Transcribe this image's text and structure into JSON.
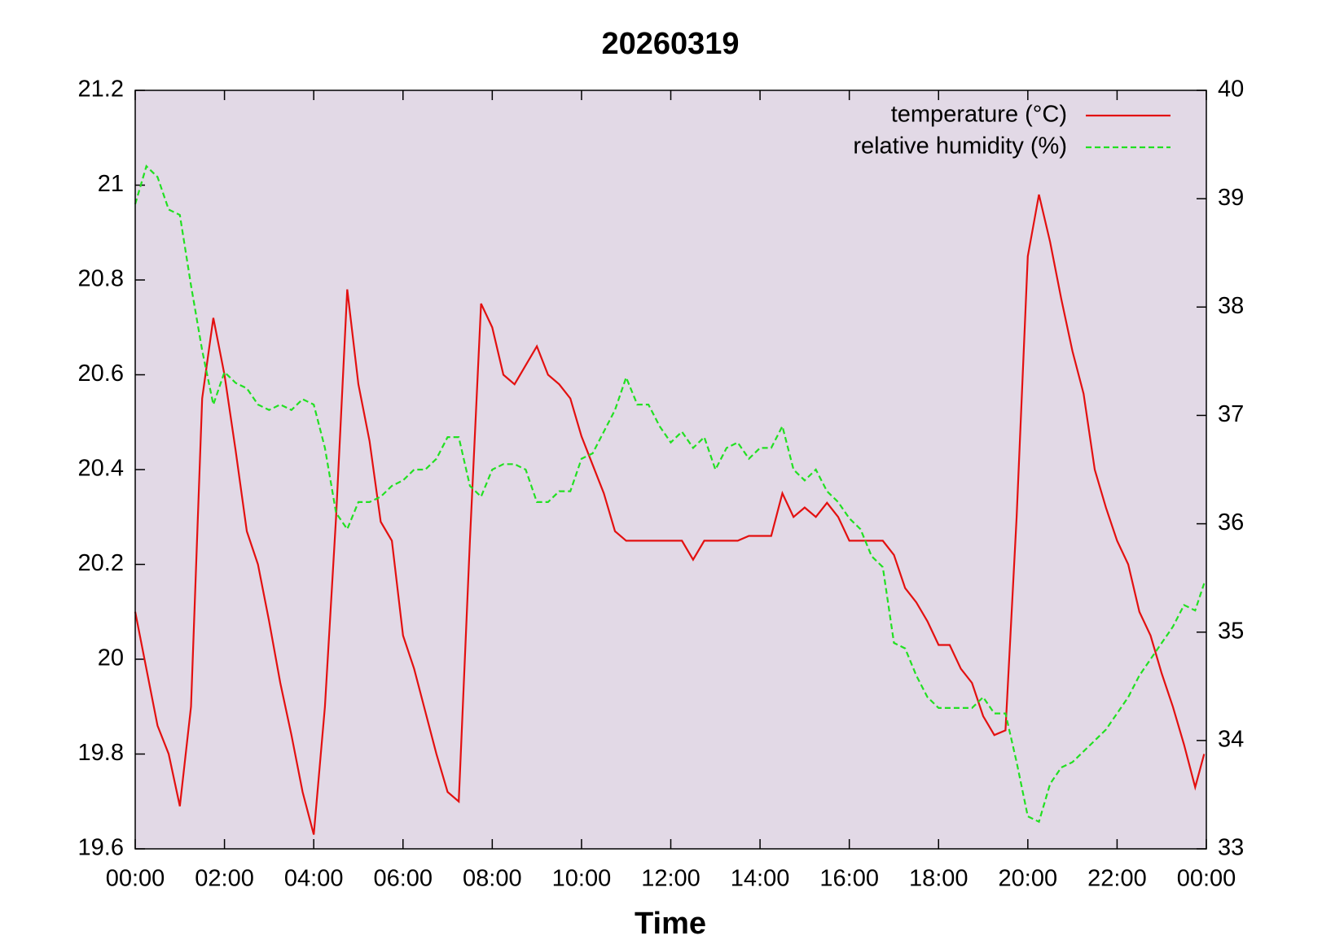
{
  "chart_data": {
    "type": "line",
    "title": "20260319",
    "xlabel": "Time",
    "x": [
      0,
      0.25,
      0.5,
      0.75,
      1,
      1.25,
      1.5,
      1.75,
      2,
      2.25,
      2.5,
      2.75,
      3,
      3.25,
      3.5,
      3.75,
      4,
      4.25,
      4.5,
      4.75,
      5,
      5.25,
      5.5,
      5.75,
      6,
      6.25,
      6.5,
      6.75,
      7,
      7.25,
      7.5,
      7.75,
      8,
      8.25,
      8.5,
      8.75,
      9,
      9.25,
      9.5,
      9.75,
      10,
      10.25,
      10.5,
      10.75,
      11,
      11.25,
      11.5,
      11.75,
      12,
      12.25,
      12.5,
      12.75,
      13,
      13.25,
      13.5,
      13.75,
      14,
      14.25,
      14.5,
      14.75,
      15,
      15.25,
      15.5,
      15.75,
      16,
      16.25,
      16.5,
      16.75,
      17,
      17.25,
      17.5,
      17.75,
      18,
      18.25,
      18.5,
      18.75,
      19,
      19.25,
      19.5,
      19.75,
      20,
      20.25,
      20.5,
      20.75,
      21,
      21.25,
      21.5,
      21.75,
      22,
      22.25,
      22.5,
      22.75,
      23,
      23.25,
      23.5,
      23.75,
      23.95
    ],
    "series": [
      {
        "name": "temperature (°C)",
        "color": "#e31010",
        "dash": "solid",
        "values": [
          20.1,
          19.98,
          19.86,
          19.8,
          19.69,
          19.9,
          20.55,
          20.72,
          20.6,
          20.44,
          20.27,
          20.2,
          20.08,
          19.95,
          19.84,
          19.72,
          19.63,
          19.9,
          20.3,
          20.78,
          20.58,
          20.46,
          20.29,
          20.25,
          20.05,
          19.98,
          19.89,
          19.8,
          19.72,
          19.7,
          20.25,
          20.75,
          20.7,
          20.6,
          20.58,
          20.62,
          20.66,
          20.6,
          20.58,
          20.55,
          20.47,
          20.41,
          20.35,
          20.27,
          20.25,
          20.25,
          20.25,
          20.25,
          20.25,
          20.25,
          20.21,
          20.25,
          20.25,
          20.25,
          20.25,
          20.26,
          20.26,
          20.26,
          20.35,
          20.3,
          20.32,
          20.3,
          20.33,
          20.3,
          20.25,
          20.25,
          20.25,
          20.25,
          20.22,
          20.15,
          20.12,
          20.08,
          20.03,
          20.03,
          19.98,
          19.95,
          19.88,
          19.84,
          19.85,
          20.3,
          20.85,
          20.98,
          20.88,
          20.76,
          20.65,
          20.56,
          20.4,
          20.32,
          20.25,
          20.2,
          20.1,
          20.05,
          19.97,
          19.9,
          19.82,
          19.73,
          19.8
        ]
      },
      {
        "name": "relative humidity (%)",
        "color": "#22e022",
        "dash": "dashed",
        "axis": "y2",
        "values": [
          38.95,
          39.3,
          39.2,
          38.9,
          38.85,
          38.2,
          37.6,
          37.1,
          37.4,
          37.3,
          37.25,
          37.1,
          37.05,
          37.1,
          37.05,
          37.15,
          37.1,
          36.7,
          36.1,
          35.95,
          36.2,
          36.2,
          36.25,
          36.35,
          36.4,
          36.5,
          36.5,
          36.6,
          36.8,
          36.8,
          36.35,
          36.25,
          36.5,
          36.55,
          36.55,
          36.5,
          36.2,
          36.2,
          36.3,
          36.3,
          36.6,
          36.65,
          36.85,
          37.05,
          37.35,
          37.1,
          37.1,
          36.9,
          36.75,
          36.85,
          36.7,
          36.8,
          36.5,
          36.7,
          36.75,
          36.6,
          36.7,
          36.7,
          36.9,
          36.5,
          36.4,
          36.5,
          36.3,
          36.2,
          36.05,
          35.95,
          35.7,
          35.6,
          34.9,
          34.85,
          34.6,
          34.4,
          34.3,
          34.3,
          34.3,
          34.3,
          34.4,
          34.25,
          34.25,
          33.8,
          33.3,
          33.25,
          33.6,
          33.75,
          33.8,
          33.9,
          34.0,
          34.1,
          34.25,
          34.4,
          34.6,
          34.75,
          34.9,
          35.05,
          35.25,
          35.2,
          35.45
        ]
      }
    ],
    "xlim": [
      0,
      24
    ],
    "xticks": [
      {
        "value": 0,
        "label": "00:00"
      },
      {
        "value": 2,
        "label": "02:00"
      },
      {
        "value": 4,
        "label": "04:00"
      },
      {
        "value": 6,
        "label": "06:00"
      },
      {
        "value": 8,
        "label": "08:00"
      },
      {
        "value": 10,
        "label": "10:00"
      },
      {
        "value": 12,
        "label": "12:00"
      },
      {
        "value": 14,
        "label": "14:00"
      },
      {
        "value": 16,
        "label": "16:00"
      },
      {
        "value": 18,
        "label": "18:00"
      },
      {
        "value": 20,
        "label": "20:00"
      },
      {
        "value": 22,
        "label": "22:00"
      },
      {
        "value": 24,
        "label": "00:00"
      }
    ],
    "ylim": [
      19.6,
      21.2
    ],
    "yticks": [
      19.6,
      19.8,
      20,
      20.2,
      20.4,
      20.6,
      20.8,
      21,
      21.2
    ],
    "y2lim": [
      33,
      40
    ],
    "y2ticks": [
      33,
      34,
      35,
      36,
      37,
      38,
      39,
      40
    ],
    "plot_background": "#e2d9e6",
    "legend": "top-right"
  }
}
